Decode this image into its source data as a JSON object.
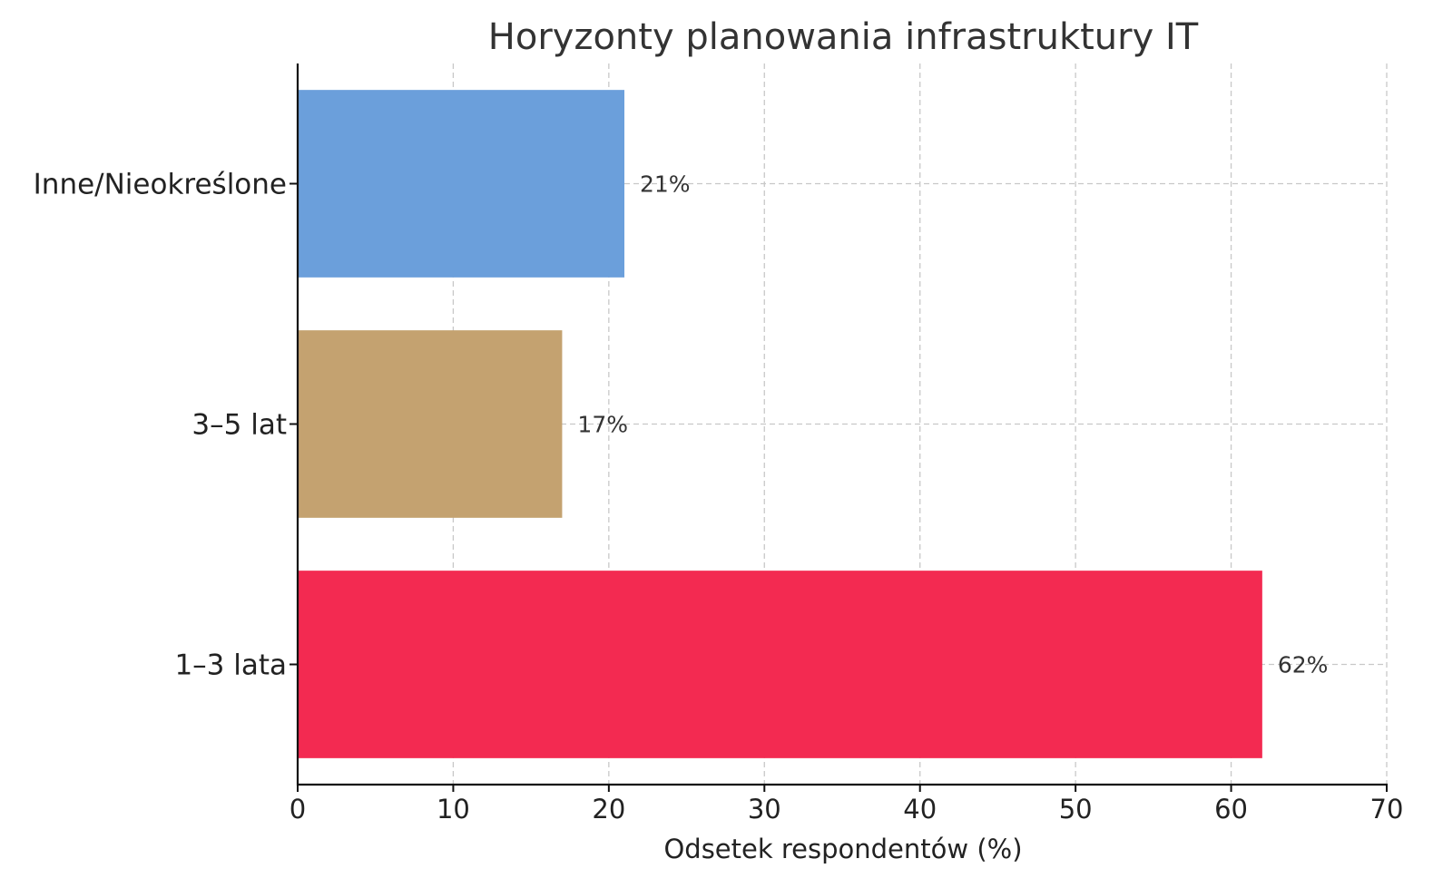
{
  "chart_data": {
    "type": "bar",
    "orientation": "horizontal",
    "title": "Horyzonty planowania infrastruktury IT",
    "xlabel": "Odsetek respondentów (%)",
    "ylabel": "",
    "categories": [
      "1–3 lata",
      "3–5 lat",
      "Inne/Nieokreślone"
    ],
    "values": [
      62,
      17,
      21
    ],
    "value_labels": [
      "62%",
      "17%",
      "21%"
    ],
    "colors": [
      "#f32a51",
      "#c4a270",
      "#6b9fdb"
    ],
    "xlim": [
      0,
      70
    ],
    "xticks": [
      0,
      10,
      20,
      30,
      40,
      50,
      60,
      70
    ],
    "grid": true
  }
}
